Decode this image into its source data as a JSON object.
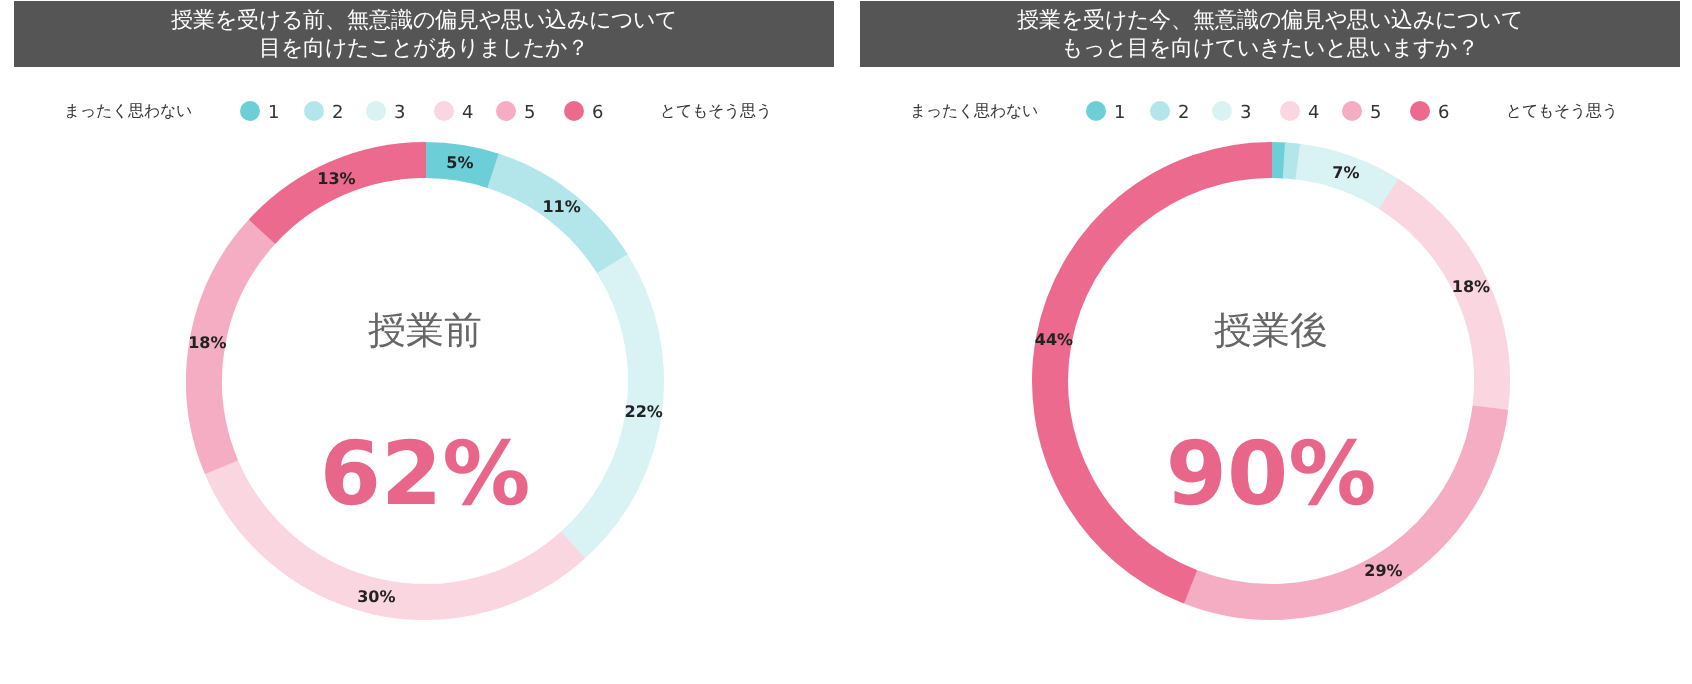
{
  "chart_data": [
    {
      "type": "donut",
      "title": "授業を受ける前、無意識の偏見や思い込みについて目を向けたことがありましたか？",
      "categories": [
        "1",
        "2",
        "3",
        "4",
        "5",
        "6"
      ],
      "values": [
        5,
        11,
        22,
        30,
        18,
        13
      ],
      "colors": [
        "#6ccfd8",
        "#b3e6eb",
        "#d9f2f3",
        "#fad6e0",
        "#f5adc3",
        "#ec6a8d"
      ],
      "value_labels": [
        "5%",
        "11%",
        "22%",
        "30%",
        "18%",
        "13%"
      ],
      "legend": "top",
      "annotations": [
        "まったく思わない",
        "とてもそう思う",
        "授業前",
        "62%"
      ]
    },
    {
      "type": "donut",
      "title": "授業を受けた今、無意識の偏見や思い込みについてもっと目を向けていきたいと思いますか？",
      "categories": [
        "1",
        "2",
        "3",
        "4",
        "5",
        "6"
      ],
      "values": [
        1,
        1,
        7,
        18,
        29,
        44
      ],
      "colors": [
        "#6ccfd8",
        "#b3e6eb",
        "#d9f2f3",
        "#fad6e0",
        "#f5adc3",
        "#ec6a8d"
      ],
      "value_labels": [
        null,
        null,
        "7%",
        "18%",
        "29%",
        "44%"
      ],
      "legend": "top",
      "annotations": [
        "まったく思わない",
        "とてもそう思う",
        "授業後",
        "90%"
      ]
    }
  ]
}
